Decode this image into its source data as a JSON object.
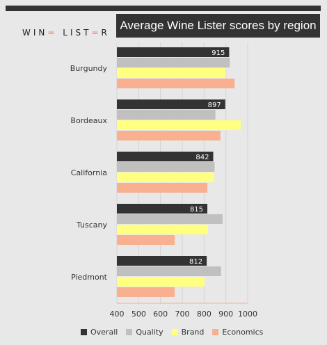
{
  "brand": {
    "logo_pre": "WIN",
    "logo_accent1": "=",
    "logo_mid": " LIST",
    "logo_accent2": "=",
    "logo_post": "R"
  },
  "chart_data": {
    "type": "bar",
    "orientation": "horizontal",
    "title": "Average Wine Lister scores by region",
    "categories": [
      "Burgundy",
      "Bordeaux",
      "California",
      "Tuscany",
      "Piedmont"
    ],
    "series": [
      {
        "name": "Overall",
        "color": "#333333",
        "values": [
          915,
          897,
          842,
          815,
          812
        ]
      },
      {
        "name": "Quality",
        "color": "#c0c0c0",
        "values": [
          918,
          852,
          848,
          885,
          878
        ]
      },
      {
        "name": "Brand",
        "color": "#ffff80",
        "values": [
          900,
          968,
          845,
          818,
          802
        ]
      },
      {
        "name": "Economics",
        "color": "#f8b090",
        "values": [
          940,
          875,
          815,
          665,
          665
        ]
      }
    ],
    "data_label_series": "Overall",
    "data_labels": [
      "915",
      "897",
      "842",
      "815",
      "812"
    ],
    "xlim": [
      400,
      1000
    ],
    "xticks": [
      "400",
      "500",
      "600",
      "700",
      "800",
      "900",
      "1000"
    ],
    "legend_position": "bottom",
    "grid": true
  }
}
